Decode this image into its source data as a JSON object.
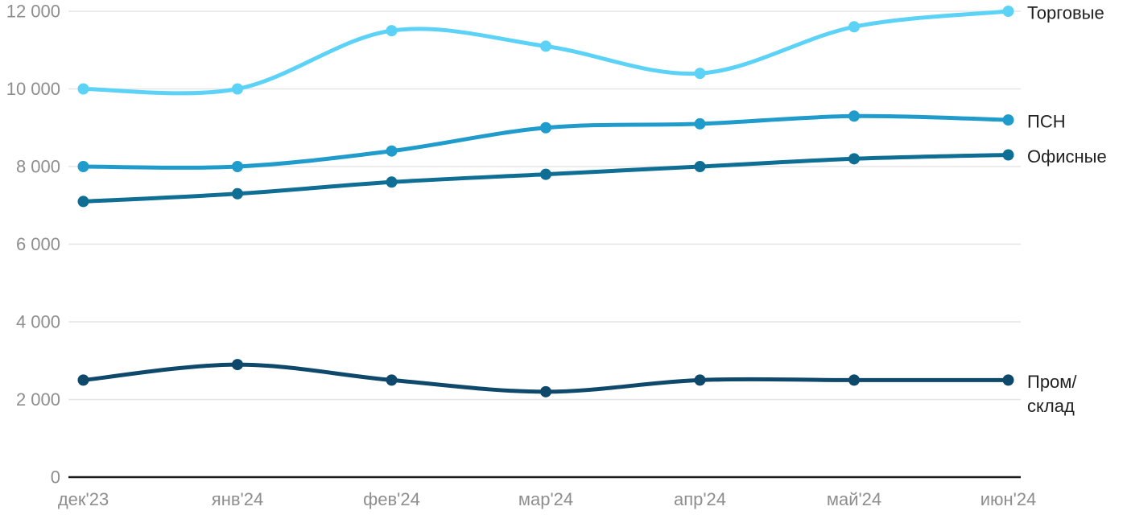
{
  "chart_data": {
    "type": "line",
    "title": "",
    "xlabel": "",
    "ylabel": "",
    "categories": [
      "дек'23",
      "янв'24",
      "фев'24",
      "мар'24",
      "апр'24",
      "май'24",
      "июн'24"
    ],
    "series": [
      {
        "name": "Торговые",
        "label_lines": [
          "Торговые"
        ],
        "color": "#5CD3F6",
        "values": [
          10000,
          10000,
          11500,
          11100,
          10400,
          11600,
          12000
        ]
      },
      {
        "name": "ПСН",
        "label_lines": [
          "ПСН"
        ],
        "color": "#1F9CCB",
        "values": [
          8000,
          8000,
          8400,
          9000,
          9100,
          9300,
          9200
        ]
      },
      {
        "name": "Офисные",
        "label_lines": [
          "Офисные"
        ],
        "color": "#0F6E93",
        "values": [
          7100,
          7300,
          7600,
          7800,
          8000,
          8200,
          8300
        ]
      },
      {
        "name": "Пром/склад",
        "label_lines": [
          "Пром/",
          "склад"
        ],
        "color": "#0E486B",
        "values": [
          2500,
          2900,
          2500,
          2200,
          2500,
          2500,
          2500
        ]
      }
    ],
    "yticks": [
      {
        "value": 12000,
        "label": "12 000"
      },
      {
        "value": 10000,
        "label": "10 000"
      },
      {
        "value": 8000,
        "label": "8 000"
      },
      {
        "value": 6000,
        "label": "6 000"
      },
      {
        "value": 4000,
        "label": "4 000"
      },
      {
        "value": 2000,
        "label": "2 000"
      },
      {
        "value": 0,
        "label": "0"
      }
    ],
    "ylim": [
      0,
      12000
    ],
    "grid": true,
    "legend_position": "right-end-labels",
    "colors": {
      "background": "#FFFFFF",
      "gridline": "#E6E6E6",
      "axis_line": "#1A1A1A",
      "tick_text": "#8E8E8E",
      "series_label_text": "#212121"
    }
  }
}
